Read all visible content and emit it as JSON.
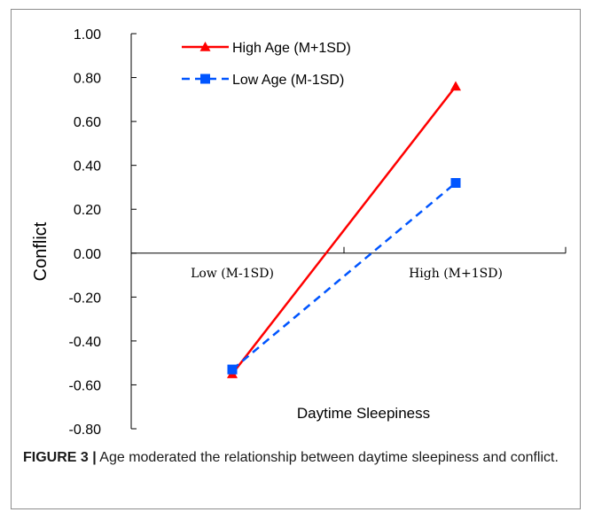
{
  "caption": {
    "label": "FIGURE 3 |",
    "text": "Age moderated the relationship between daytime sleepiness and conflict."
  },
  "chart_data": {
    "type": "line",
    "title": "",
    "xlabel": "Daytime Sleepiness",
    "ylabel": "Conflict",
    "categories": [
      "Low (M-1SD)",
      "High (M+1SD)"
    ],
    "ylim": [
      -0.8,
      1.0
    ],
    "yticks": [
      "1.00",
      "0.80",
      "0.60",
      "0.40",
      "0.20",
      "0.00",
      "-0.20",
      "-0.40",
      "-0.60",
      "-0.80"
    ],
    "legend_position": "top-left",
    "grid": false,
    "series": [
      {
        "name": "High Age (M+1SD)",
        "values": [
          -0.55,
          0.76
        ],
        "color": "#ff0000",
        "marker": "triangle",
        "dash": "solid"
      },
      {
        "name": "Low Age (M-1SD)",
        "values": [
          -0.53,
          0.32
        ],
        "color": "#0055ff",
        "marker": "square",
        "dash": "dashed"
      }
    ]
  }
}
